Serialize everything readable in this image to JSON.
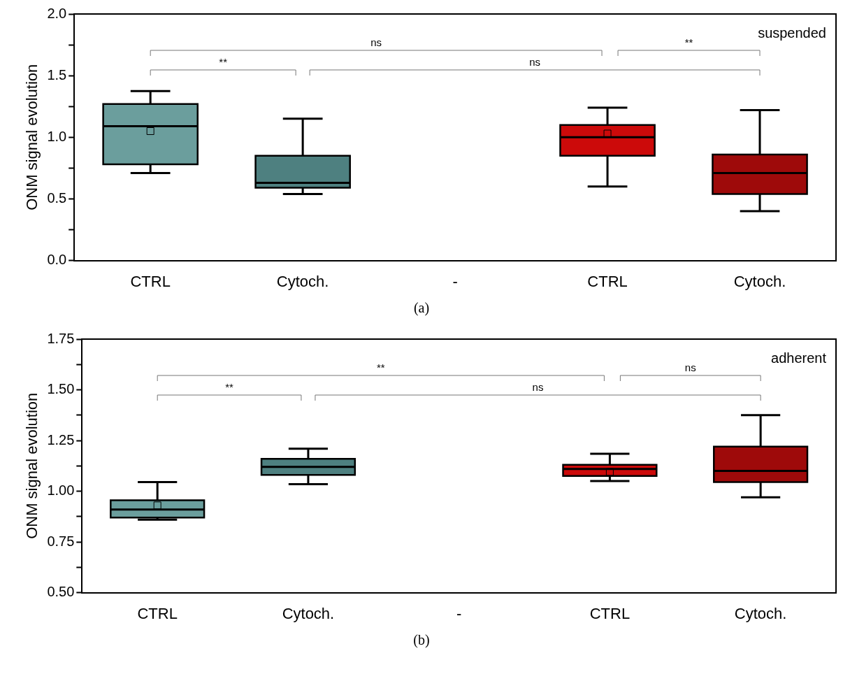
{
  "chart_data": [
    {
      "type": "box",
      "ylabel": "ONM signal evolution",
      "categories": [
        "CTRL",
        "Cytoch.",
        "-",
        "CTRL",
        "Cytoch."
      ],
      "boxes": [
        {
          "low": 0.71,
          "q1": 0.78,
          "median": 1.09,
          "q3": 1.27,
          "high": 1.375,
          "mean": 1.05
        },
        {
          "low": 0.54,
          "q1": 0.59,
          "median": 0.63,
          "q3": 0.85,
          "high": 1.15
        },
        null,
        {
          "low": 0.6,
          "q1": 0.85,
          "median": 1.0,
          "q3": 1.1,
          "high": 1.24,
          "mean": 1.03
        },
        {
          "low": 0.4,
          "q1": 0.54,
          "median": 0.71,
          "q3": 0.86,
          "high": 1.22
        }
      ],
      "colors": [
        "#6b9e9d",
        "#4e8080",
        null,
        "#cc0a0a",
        "#9e0a0a"
      ],
      "ylim": [
        0,
        2
      ],
      "yticks": [
        {
          "value": 0,
          "label": "0.0"
        },
        {
          "value": 0.25,
          "label": null
        },
        {
          "value": 0.5,
          "label": "0.5"
        },
        {
          "value": 0.75,
          "label": null
        },
        {
          "value": 1,
          "label": "1.0"
        },
        {
          "value": 1.25,
          "label": null
        },
        {
          "value": 1.5,
          "label": "1.5"
        },
        {
          "value": 1.75,
          "label": null
        },
        {
          "value": 2,
          "label": "2.0"
        }
      ],
      "grid": false,
      "annotations": [
        "suspended",
        "ns",
        "**",
        "ns",
        "**",
        "(a)"
      ]
    },
    {
      "type": "box",
      "ylabel": "ONM signal evolution",
      "categories": [
        "CTRL",
        "Cytoch.",
        "-",
        "CTRL",
        "Cytoch."
      ],
      "boxes": [
        {
          "low": 0.86,
          "q1": 0.87,
          "median": 0.91,
          "q3": 0.955,
          "high": 1.045,
          "mean": 0.93
        },
        {
          "low": 1.035,
          "q1": 1.08,
          "median": 1.12,
          "q3": 1.16,
          "high": 1.21
        },
        null,
        {
          "low": 1.05,
          "q1": 1.075,
          "median": 1.11,
          "q3": 1.13,
          "high": 1.185,
          "mean": 1.095
        },
        {
          "low": 0.97,
          "q1": 1.045,
          "median": 1.1,
          "q3": 1.22,
          "high": 1.375
        }
      ],
      "colors": [
        "#6b9e9d",
        "#4e8080",
        null,
        "#cc0a0a",
        "#9e0a0a"
      ],
      "ylim": [
        0.5,
        1.75
      ],
      "yticks": [
        {
          "value": 0.5,
          "label": "0.50"
        },
        {
          "value": 0.625,
          "label": null
        },
        {
          "value": 0.75,
          "label": "0.75"
        },
        {
          "value": 0.875,
          "label": null
        },
        {
          "value": 1,
          "label": "1.00"
        },
        {
          "value": 1.125,
          "label": null
        },
        {
          "value": 1.25,
          "label": "1.25"
        },
        {
          "value": 1.375,
          "label": null
        },
        {
          "value": 1.5,
          "label": "1.50"
        },
        {
          "value": 1.625,
          "label": null
        },
        {
          "value": 1.75,
          "label": "1.75"
        }
      ],
      "grid": false,
      "annotations": [
        "adherent",
        "**",
        "**",
        "ns",
        "ns",
        "(b)"
      ]
    }
  ]
}
